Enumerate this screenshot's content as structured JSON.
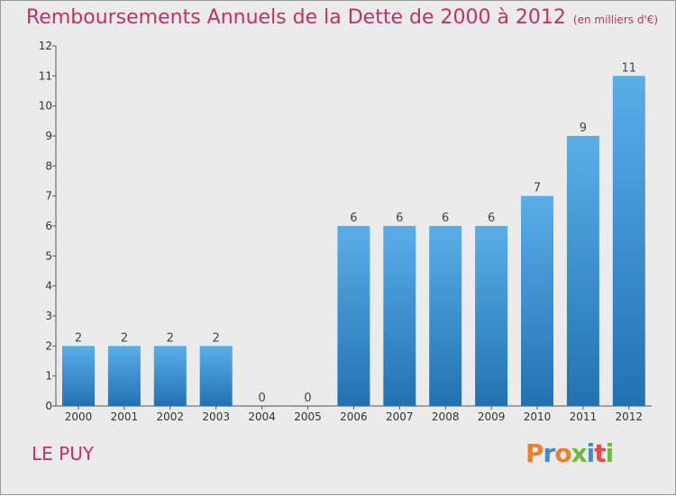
{
  "header": {
    "title": "Remboursements Annuels de la Dette de 2000 à 2012",
    "unit": "(en milliers d'€)"
  },
  "footer": {
    "commune": "LE PUY",
    "logo_text": "Proxiti"
  },
  "colors": {
    "title": "#c0306a",
    "bar_top": "#5aaee8",
    "bar_bottom": "#2272b2",
    "background": "#ebebeb"
  },
  "chart_data": {
    "type": "bar",
    "title": "Remboursements Annuels de la Dette de 2000 à 2012",
    "subtitle": "(en milliers d'€)",
    "xlabel": "",
    "ylabel": "",
    "categories": [
      "2000",
      "2001",
      "2002",
      "2003",
      "2004",
      "2005",
      "2006",
      "2007",
      "2008",
      "2009",
      "2010",
      "2011",
      "2012"
    ],
    "values": [
      2,
      2,
      2,
      2,
      0,
      0,
      6,
      6,
      6,
      6,
      7,
      9,
      11
    ],
    "ylim": [
      0,
      12
    ],
    "yticks": [
      0,
      1,
      2,
      3,
      4,
      5,
      6,
      7,
      8,
      9,
      10,
      11,
      12
    ],
    "grid": false,
    "legend": "none"
  }
}
